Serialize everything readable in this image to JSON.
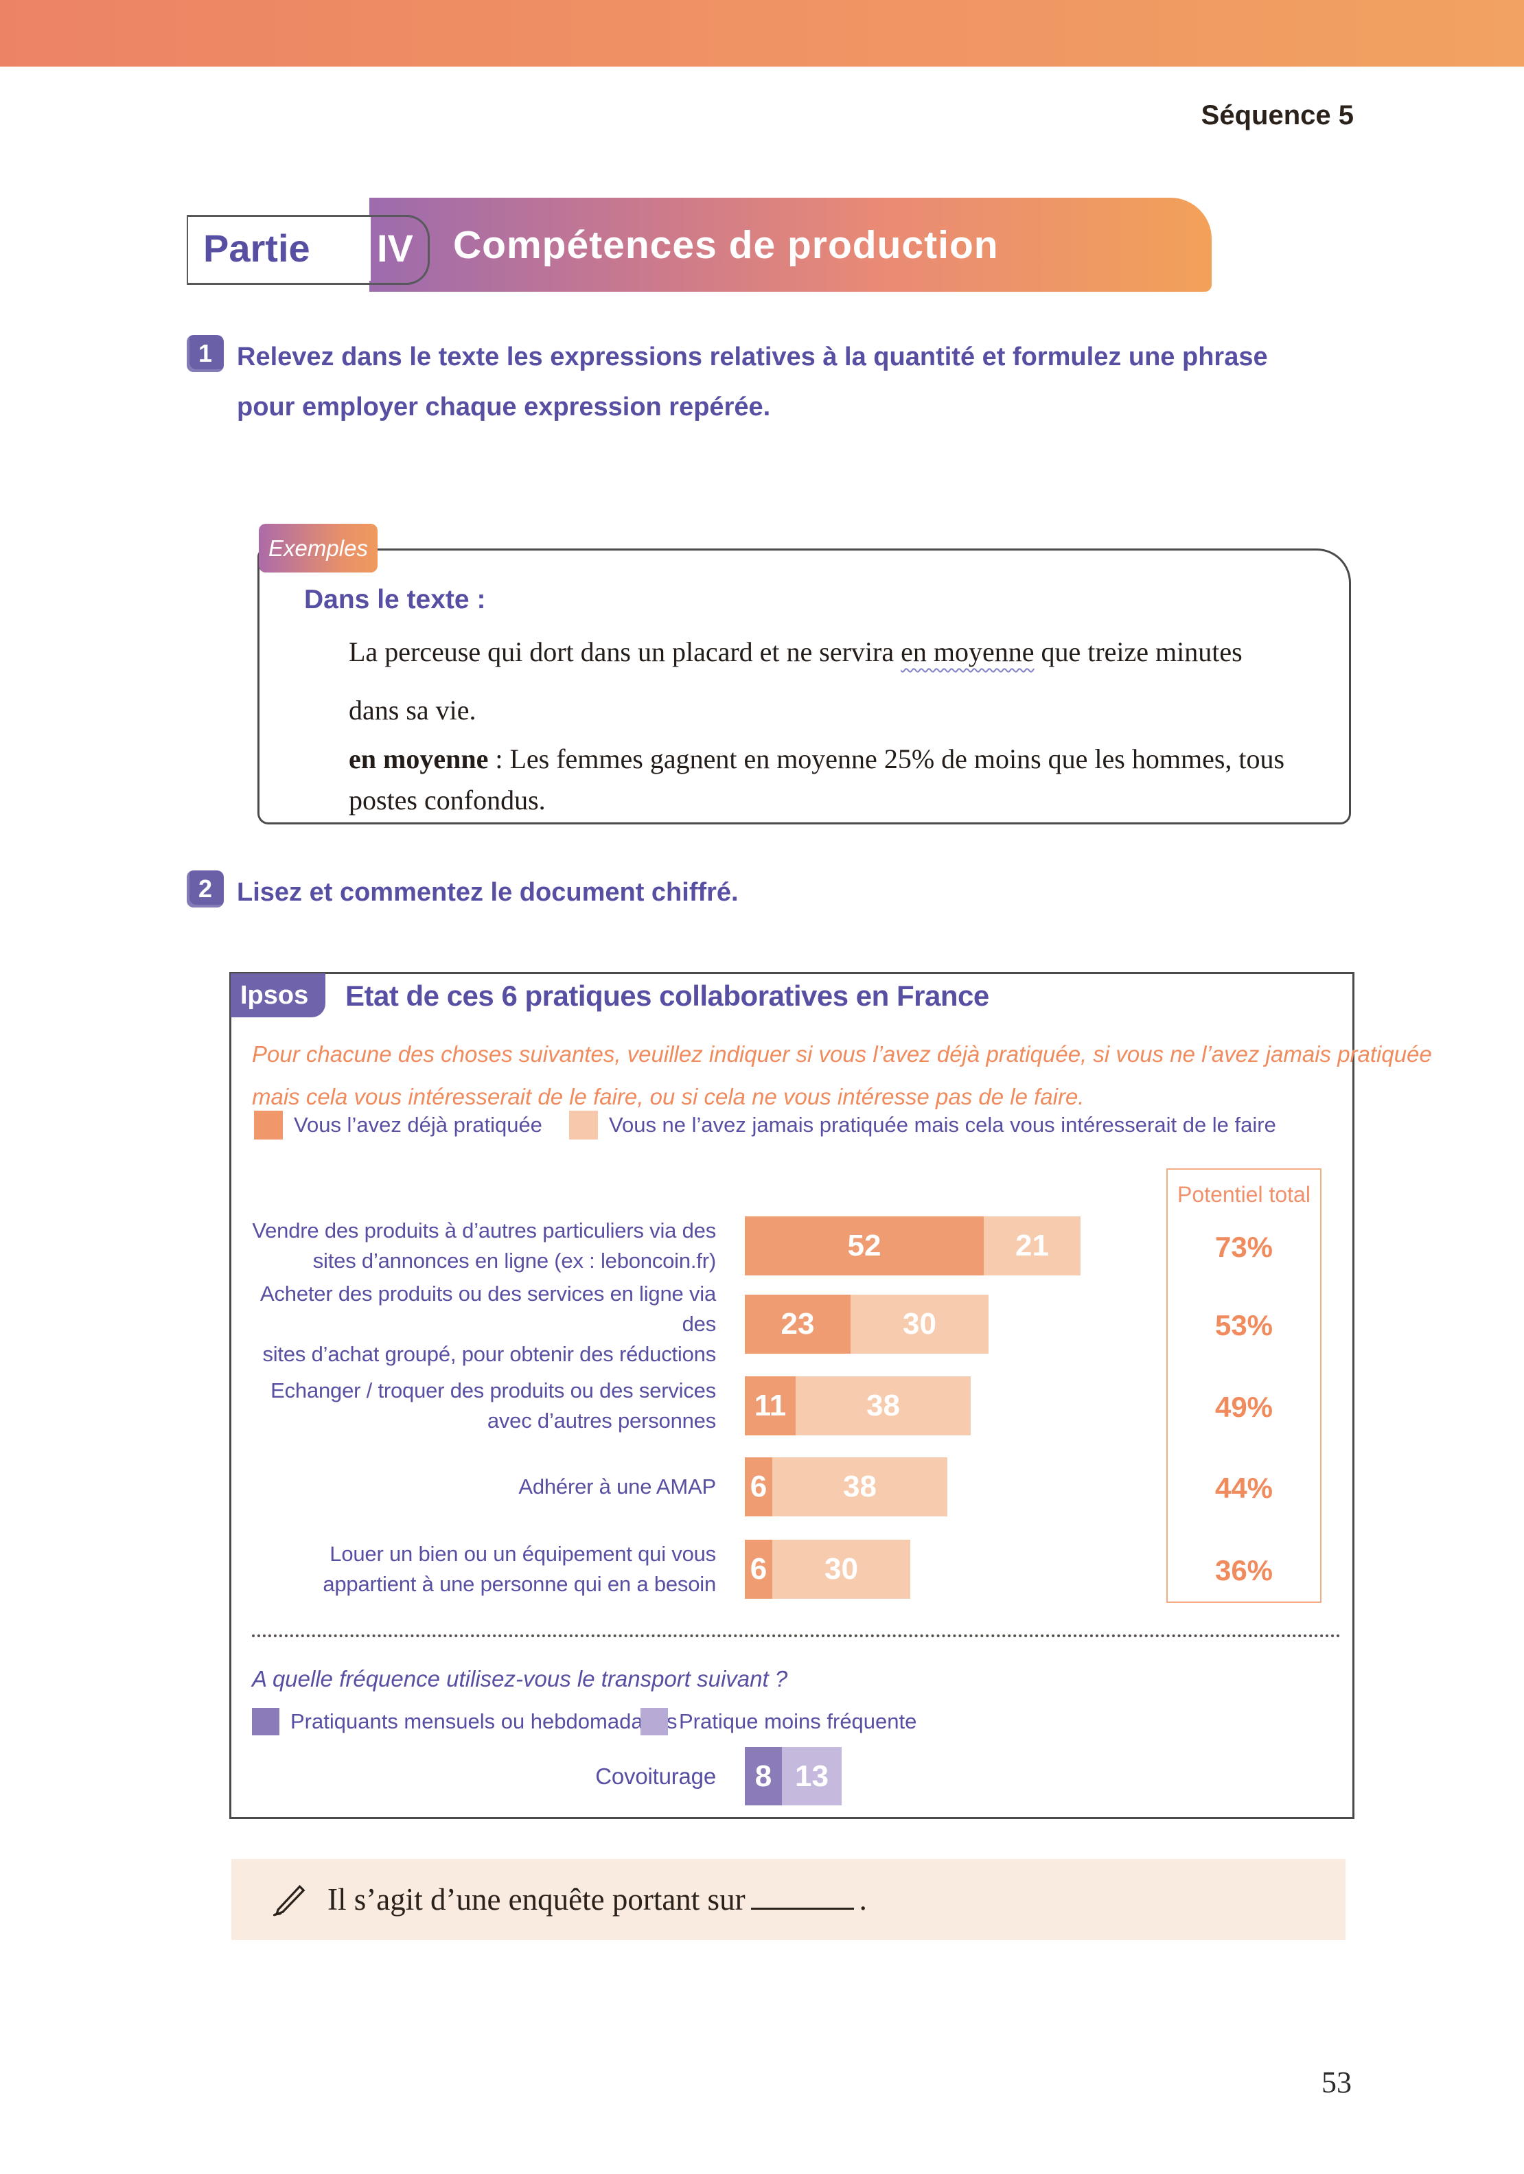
{
  "header": {
    "sequence": "Séquence 5"
  },
  "banner": {
    "part_label": "Partie",
    "part_number": "IV",
    "title": "Compétences de production"
  },
  "exercise1": {
    "number": "1",
    "lines": [
      "Relevez dans le texte les expressions relatives à la quantité et formulez une phrase",
      "pour employer chaque expression repérée."
    ]
  },
  "examples": {
    "tab": "Exemples",
    "heading": "Dans le texte :",
    "paragraph1": [
      [
        {
          "t": "La perceuse qui dort dans un placard et ne servira "
        },
        {
          "t": "en moyenne",
          "style": "wavy"
        },
        {
          "t": " que treize minutes"
        }
      ],
      [
        {
          "t": "dans sa vie."
        }
      ]
    ],
    "paragraph2": [
      [
        {
          "t": "en moyenne",
          "style": "bold"
        },
        {
          "t": " : Les femmes gagnent en moyenne 25% de moins que les hommes, tous"
        }
      ],
      [
        {
          "t": "postes confondus."
        }
      ]
    ]
  },
  "exercise2": {
    "number": "2",
    "text": "Lisez et commentez le document chiffré."
  },
  "ipsos": {
    "tab": "Ipsos",
    "title": "Etat de ces 6 pratiques collaboratives en France",
    "intro_lines": [
      "Pour chacune des choses suivantes, veuillez indiquer si vous l’avez déjà pratiquée, si vous ne l’avez jamais pratiquée",
      "mais cela vous intéresserait de le faire, ou si cela ne vous intéresse pas de le faire."
    ],
    "legend": [
      {
        "label": "Vous l’avez déjà pratiquée",
        "color": "#F0976C"
      },
      {
        "label": "Vous ne l’avez jamais pratiquée mais cela vous intéresserait de le faire",
        "color": "#F7C8AB"
      }
    ],
    "potentiel": {
      "title": "Potentiel total",
      "values": [
        "73%",
        "53%",
        "49%",
        "44%",
        "36%"
      ]
    },
    "rows": [
      {
        "label_lines": [
          "Vendre des produits à d’autres particuliers via des",
          "sites d’annonces en ligne (ex : leboncoin.fr)"
        ],
        "v1": 52,
        "v2": 21
      },
      {
        "label_lines": [
          "Acheter des produits ou des services en ligne via des",
          "sites d’achat groupé, pour obtenir des réductions"
        ],
        "v1": 23,
        "v2": 30
      },
      {
        "label_lines": [
          "Echanger / troquer des produits ou des services",
          "avec d’autres personnes"
        ],
        "v1": 11,
        "v2": 38
      },
      {
        "label_lines": [
          "Adhérer à une AMAP"
        ],
        "v1": 6,
        "v2": 38
      },
      {
        "label_lines": [
          "Louer un bien ou un équipement qui vous",
          "appartient à une personne qui en a besoin"
        ],
        "v1": 6,
        "v2": 30
      }
    ],
    "freq_question": "A quelle fréquence utilisez-vous le transport suivant ?",
    "legend2": [
      {
        "label": "Pratiquants mensuels ou hebdomadaires",
        "color": "#8C7BB9"
      },
      {
        "label": "Pratique moins fréquente",
        "color": "#B7ABD5"
      }
    ],
    "covoiturage": {
      "label": "Covoiturage",
      "v1": 8,
      "v2": 13
    }
  },
  "answer": {
    "text_before": "Il s’agit d’une enquête portant sur",
    "text_after": "."
  },
  "page": {
    "number": "53"
  },
  "colors": {
    "topbar_left": "#EC8365",
    "topbar_right": "#F2A262",
    "purple_text": "#574FA2",
    "purple_tab": "#6F64AC",
    "badge": "#6A60A8",
    "orange_text": "#F08B5D",
    "bar_dark_orange": "#F09C72",
    "bar_light_orange": "#F7CBAE",
    "bar_dark_purple": "#8C7BB9",
    "bar_light_purple": "#C5BADE",
    "potentiel_border": "#F4AC85",
    "answer_bg": "#FAEBE0"
  },
  "chart_data": [
    {
      "type": "bar",
      "title": "Etat de ces 6 pratiques collaboratives en France",
      "categories": [
        "Vendre des produits à d’autres particuliers via des sites d’annonces en ligne (ex : leboncoin.fr)",
        "Acheter des produits ou des services en ligne via des sites d’achat groupé, pour obtenir des réductions",
        "Echanger / troquer des produits ou des services avec d’autres personnes",
        "Adhérer à une AMAP",
        "Louer un bien ou un équipement qui vous appartient à une personne qui en a besoin"
      ],
      "series": [
        {
          "name": "Vous l’avez déjà pratiquée",
          "values": [
            52,
            23,
            11,
            6,
            6
          ]
        },
        {
          "name": "Vous ne l’avez jamais pratiquée mais cela vous intéresserait de le faire",
          "values": [
            21,
            30,
            38,
            38,
            30
          ]
        }
      ],
      "annotations": {
        "label": "Potentiel total",
        "values_pct": [
          73,
          53,
          49,
          44,
          36
        ]
      },
      "orientation": "horizontal-stacked",
      "grid": false,
      "legend_position": "top"
    },
    {
      "type": "bar",
      "title": "A quelle fréquence utilisez-vous le transport suivant ?",
      "categories": [
        "Covoiturage"
      ],
      "series": [
        {
          "name": "Pratiquants mensuels ou hebdomadaires",
          "values": [
            8
          ]
        },
        {
          "name": "Pratique moins fréquente",
          "values": [
            13
          ]
        }
      ],
      "orientation": "horizontal-stacked",
      "grid": false,
      "legend_position": "top"
    }
  ]
}
